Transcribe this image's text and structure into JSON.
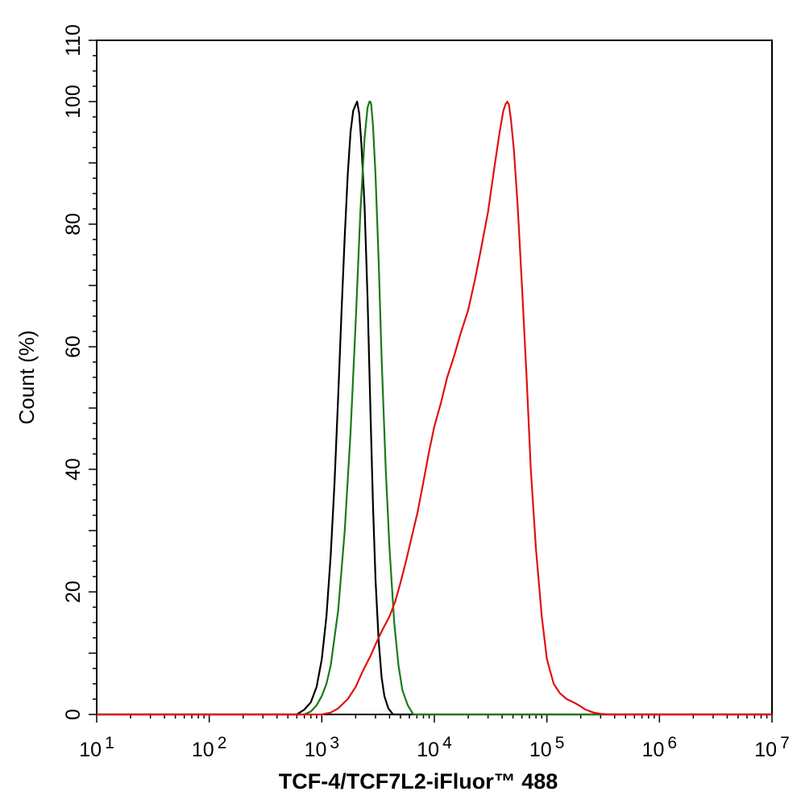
{
  "chart_data": {
    "type": "line",
    "title": "",
    "xlabel": "TCF-4/TCF7L2-iFluor™ 488",
    "ylabel": "Count  (%)",
    "x_scale": "log",
    "xlim": [
      10,
      10000000
    ],
    "ylim": [
      0,
      110
    ],
    "x_ticks": [
      {
        "value": 10,
        "base": "10",
        "exp": "1"
      },
      {
        "value": 100,
        "base": "10",
        "exp": "2"
      },
      {
        "value": 1000,
        "base": "10",
        "exp": "3"
      },
      {
        "value": 10000,
        "base": "10",
        "exp": "4"
      },
      {
        "value": 100000,
        "base": "10",
        "exp": "5"
      },
      {
        "value": 1000000,
        "base": "10",
        "exp": "6"
      },
      {
        "value": 10000000,
        "base": "10",
        "exp": "7"
      }
    ],
    "y_ticks": [
      {
        "value": 0,
        "label": "0"
      },
      {
        "value": 20,
        "label": "20"
      },
      {
        "value": 40,
        "label": "40"
      },
      {
        "value": 60,
        "label": "60"
      },
      {
        "value": 80,
        "label": "80"
      },
      {
        "value": 100,
        "label": "100"
      },
      {
        "value": 110,
        "label": "110"
      }
    ],
    "grid": false,
    "series": [
      {
        "color": "#000000",
        "x": [
          10,
          600,
          700,
          800,
          900,
          1000,
          1100,
          1200,
          1300,
          1400,
          1500,
          1600,
          1700,
          1800,
          1900,
          2000,
          2060,
          2150,
          2250,
          2400,
          2550,
          2700,
          2850,
          3000,
          3200,
          3400,
          3600,
          3900,
          4300,
          10000000
        ],
        "y": [
          0,
          0,
          0.8,
          2,
          4.5,
          9,
          16,
          26,
          38,
          52,
          66,
          78,
          88,
          95,
          98.5,
          99.5,
          100,
          98,
          93,
          83,
          68,
          50,
          34,
          22,
          12,
          6,
          3,
          1,
          0,
          0
        ]
      },
      {
        "color": "#1a7a1a",
        "x": [
          10,
          700,
          800,
          900,
          1000,
          1100,
          1200,
          1400,
          1600,
          1800,
          2000,
          2200,
          2400,
          2550,
          2650,
          2700,
          2750,
          2850,
          3000,
          3200,
          3400,
          3700,
          4000,
          4400,
          4800,
          5200,
          5800,
          6500,
          10000000
        ],
        "y": [
          0,
          0,
          0.5,
          1.5,
          3,
          5,
          8,
          17,
          30,
          46,
          64,
          82,
          94,
          99,
          100,
          100,
          99.5,
          96,
          88,
          74,
          58,
          40,
          27,
          15,
          8,
          4,
          1.5,
          0,
          0
        ]
      },
      {
        "color": "#e01010",
        "x": [
          10,
          1000,
          1200,
          1400,
          1700,
          2000,
          2300,
          2700,
          3100,
          3500,
          4000,
          4500,
          5000,
          5600,
          6300,
          7100,
          8000,
          9000,
          10000,
          11500,
          13000,
          15000,
          17000,
          20000,
          23000,
          26000,
          30000,
          34000,
          38000,
          41000,
          43000,
          44500,
          46000,
          48000,
          51000,
          55000,
          60000,
          66000,
          72000,
          80000,
          90000,
          100000,
          115000,
          130000,
          150000,
          180000,
          200000,
          220000,
          260000,
          300000,
          350000,
          400000,
          10000000
        ],
        "y": [
          0,
          0,
          0.3,
          1,
          2.5,
          4.5,
          7,
          9.5,
          12,
          14,
          16,
          18.5,
          21.5,
          25,
          29,
          33,
          38,
          43,
          47,
          51,
          55,
          58.5,
          62,
          66,
          71,
          76,
          82,
          89,
          95,
          98.5,
          99.6,
          100,
          99.5,
          97,
          92,
          83,
          70,
          55,
          40,
          27,
          16,
          9,
          5,
          3.5,
          2.5,
          1.8,
          1.3,
          0.8,
          0.3,
          0.1,
          0,
          0,
          0
        ]
      }
    ]
  }
}
